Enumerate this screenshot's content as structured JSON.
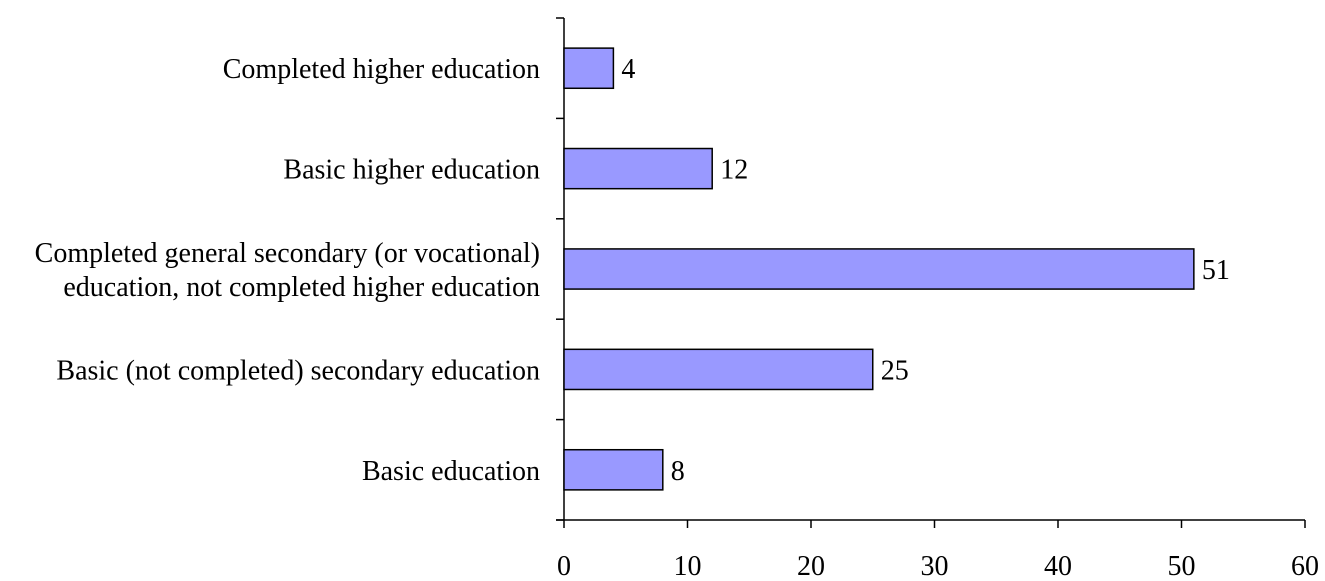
{
  "chart_data": {
    "type": "bar",
    "orientation": "horizontal",
    "categories": [
      [
        "Completed higher education"
      ],
      [
        "Basic higher education"
      ],
      [
        "Completed general secondary (or vocational)",
        "education, not completed higher education"
      ],
      [
        "Basic (not completed) secondary education"
      ],
      [
        "Basic education"
      ]
    ],
    "values": [
      4,
      12,
      51,
      25,
      8
    ],
    "xlim": [
      0,
      60
    ],
    "xticks": [
      0,
      10,
      20,
      30,
      40,
      50,
      60
    ],
    "grid": false,
    "legend": "none",
    "bar_color": "#9999ff"
  }
}
